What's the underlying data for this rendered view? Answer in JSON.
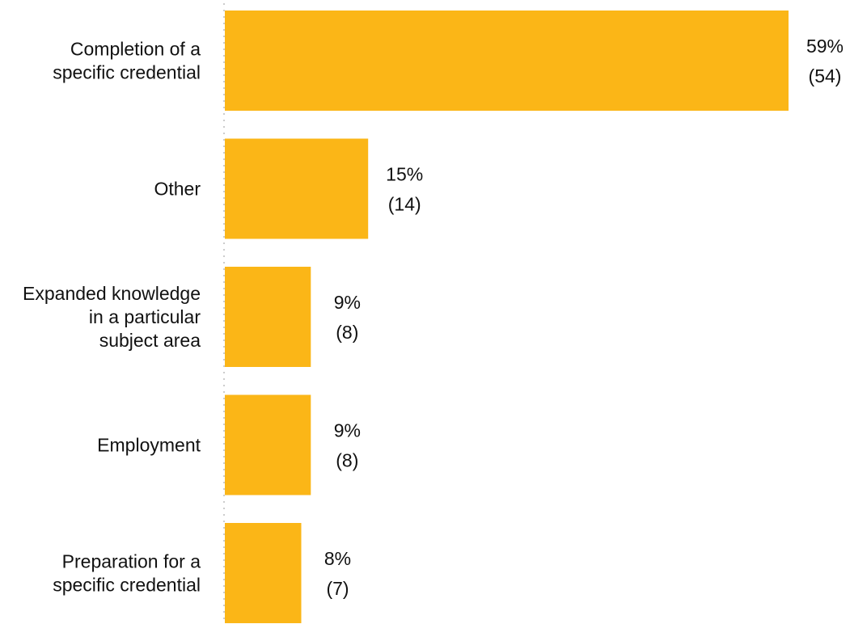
{
  "chart_data": {
    "type": "bar",
    "orientation": "horizontal",
    "categories": [
      [
        "Completion of a",
        "specific credential"
      ],
      [
        "Other"
      ],
      [
        "Expanded knowledge",
        "in a particular",
        "subject area"
      ],
      [
        "Employment"
      ],
      [
        "Preparation for a",
        "specific credential"
      ]
    ],
    "values": [
      59,
      15,
      9,
      9,
      8
    ],
    "counts": [
      54,
      14,
      8,
      8,
      7
    ],
    "value_labels": [
      "59%",
      "15%",
      "9%",
      "9%",
      "8%"
    ],
    "count_labels": [
      "(54)",
      "(14)",
      "(8)",
      "(8)",
      "(7)"
    ],
    "unit": "%",
    "xlim": [
      0,
      59
    ],
    "bar_color": "#FBB617",
    "axis_color": "#cccccc",
    "grid": false,
    "legend": "none",
    "title": "",
    "xlabel": "",
    "ylabel": ""
  }
}
